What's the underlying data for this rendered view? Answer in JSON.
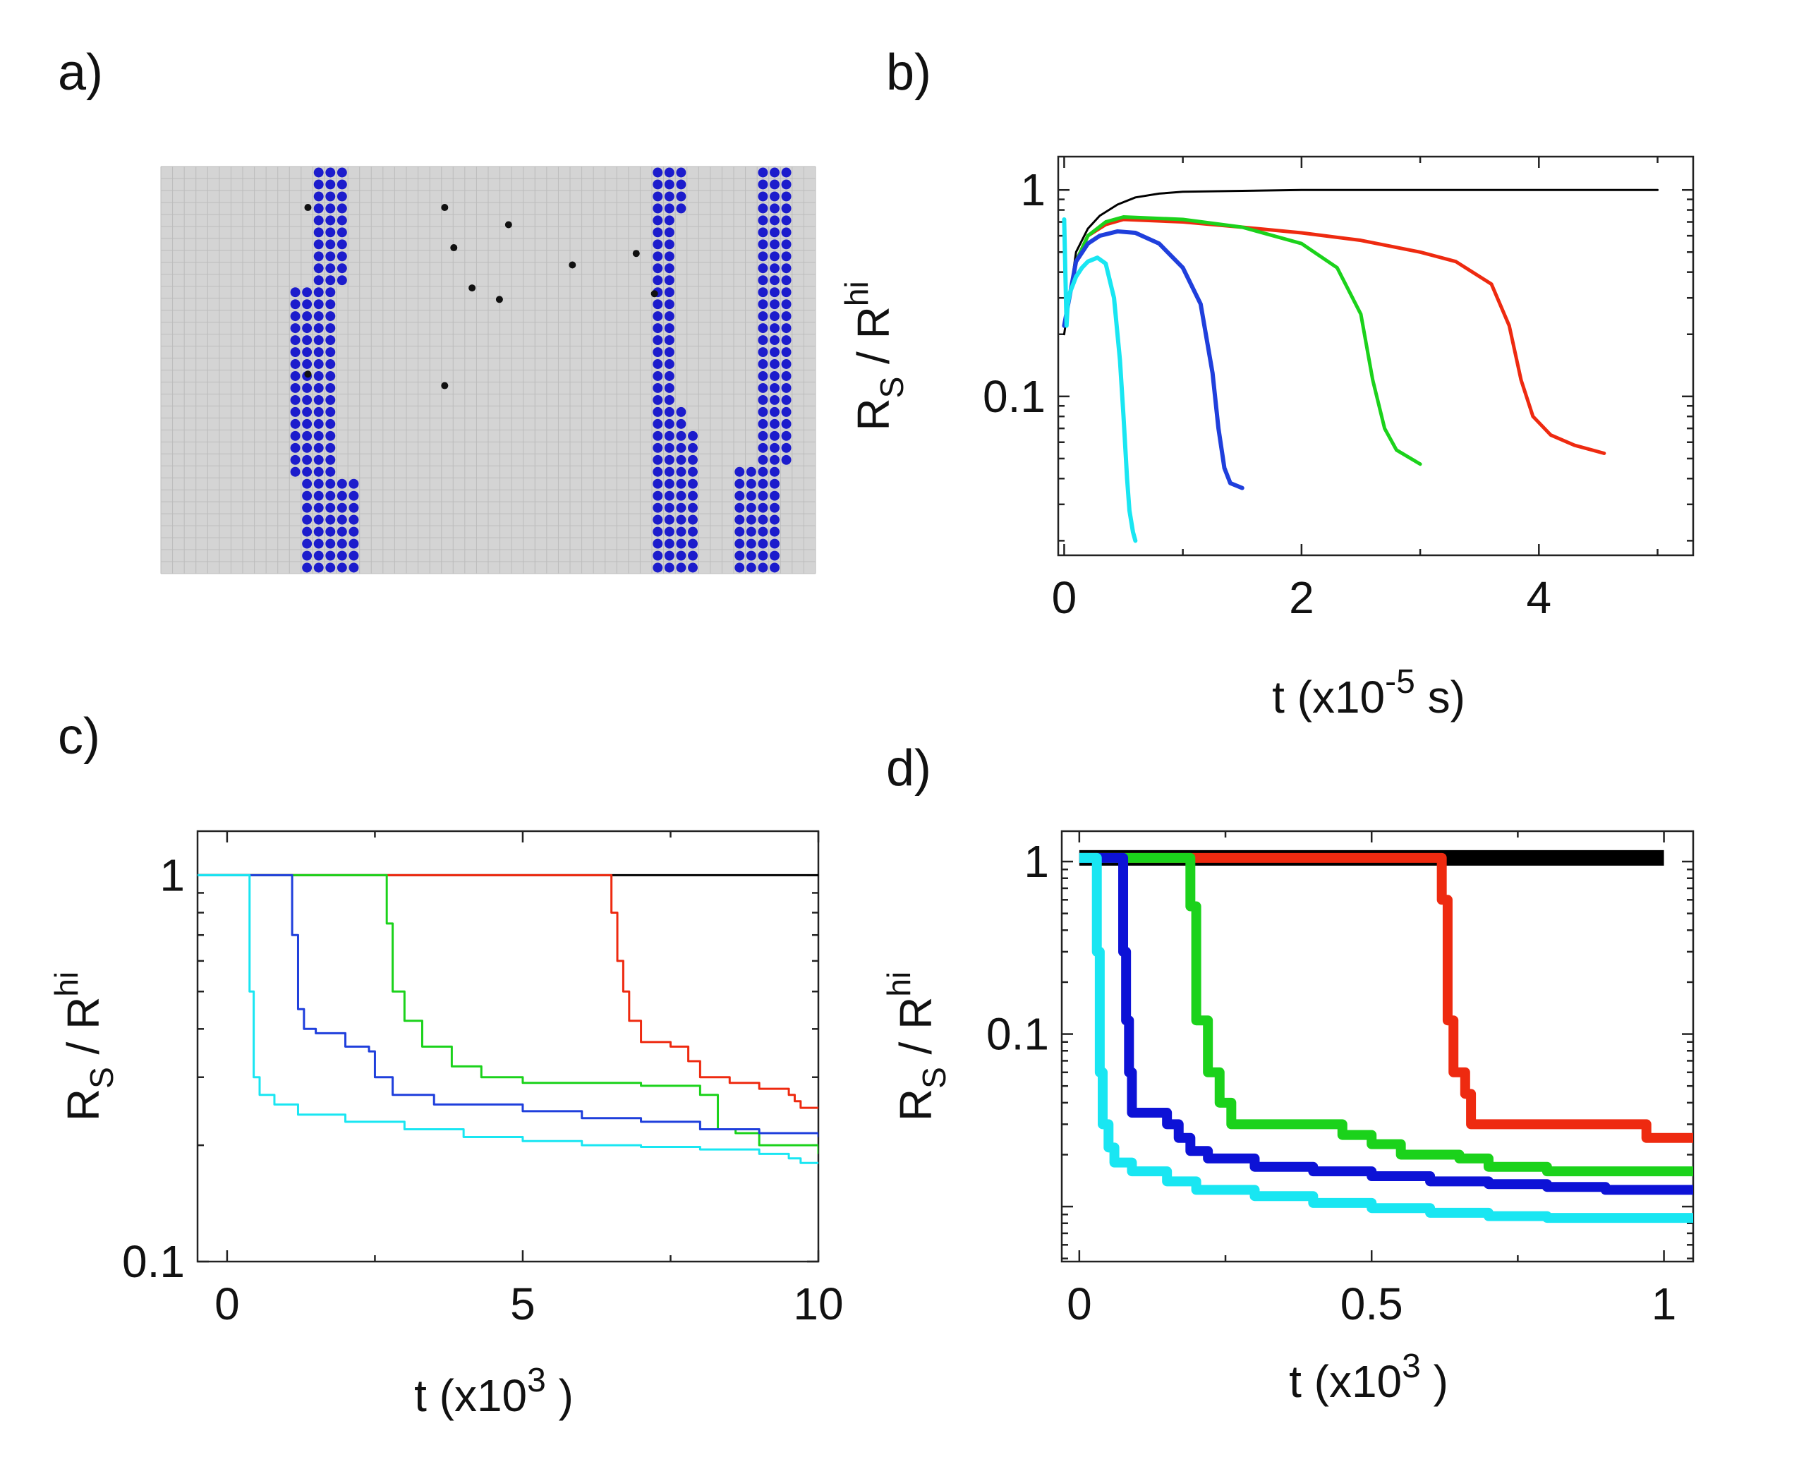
{
  "panels": {
    "a": {
      "label": "a)"
    },
    "b": {
      "label": "b)"
    },
    "c": {
      "label": "c)"
    },
    "d": {
      "label": "d)"
    }
  },
  "lattice": {
    "background": "#d4d4d4",
    "site_color": "#1c1ccc",
    "defect_color": "#111111",
    "grid_cols": 56,
    "grid_rows": 34,
    "defects": [
      [
        11,
        4
      ],
      [
        26,
        4
      ],
      [
        33,
        7
      ],
      [
        27,
        11
      ],
      [
        47,
        12
      ],
      [
        40,
        14
      ],
      [
        29,
        18
      ],
      [
        49,
        19
      ],
      [
        32,
        20
      ],
      [
        11,
        33
      ],
      [
        26,
        35
      ]
    ]
  },
  "colors": {
    "black": "#000000",
    "red": "#ee2a10",
    "green": "#1bd21b",
    "blue": "#1f3fdc",
    "cyan": "#19e6f2",
    "dark_blue": "#0d12d6"
  },
  "chart_data": [
    {
      "id": "b",
      "type": "line",
      "title": "",
      "xlabel": "t (x10",
      "xlabel_sup": "-5",
      "xlabel_tail": " s)",
      "ylabel_main": "R",
      "ylabel_sub": "S",
      "ylabel_mid": " / R",
      "ylabel_sup": "hi",
      "xlim": [
        -0.05,
        5.3
      ],
      "ylim": [
        0.017,
        1.45
      ],
      "yscale": "log",
      "xticks": [
        0,
        2,
        4
      ],
      "xtick_labels": [
        "0",
        "2",
        "4"
      ],
      "yticks": [
        0.1,
        1
      ],
      "ytick_labels": [
        "0.1",
        "1"
      ],
      "series": [
        {
          "color": "black",
          "width": 3,
          "x": [
            0,
            0.1,
            0.2,
            0.3,
            0.45,
            0.6,
            0.8,
            1.0,
            1.5,
            2.0,
            3.0,
            4.0,
            5.0
          ],
          "y": [
            0.2,
            0.5,
            0.65,
            0.75,
            0.85,
            0.92,
            0.96,
            0.98,
            0.99,
            1.0,
            1.0,
            1.0,
            1.0
          ]
        },
        {
          "color": "red",
          "width": 5,
          "x": [
            0,
            0.1,
            0.2,
            0.35,
            0.5,
            1.0,
            1.5,
            2.0,
            2.5,
            3.0,
            3.3,
            3.6,
            3.75,
            3.85,
            3.95,
            4.1,
            4.3,
            4.55
          ],
          "y": [
            0.22,
            0.45,
            0.6,
            0.68,
            0.72,
            0.7,
            0.66,
            0.62,
            0.57,
            0.5,
            0.45,
            0.35,
            0.22,
            0.12,
            0.08,
            0.065,
            0.058,
            0.053
          ]
        },
        {
          "color": "green",
          "width": 5,
          "x": [
            0,
            0.1,
            0.2,
            0.35,
            0.5,
            1.0,
            1.5,
            2.0,
            2.3,
            2.5,
            2.6,
            2.7,
            2.8,
            3.0
          ],
          "y": [
            0.22,
            0.45,
            0.6,
            0.7,
            0.74,
            0.72,
            0.66,
            0.55,
            0.42,
            0.25,
            0.12,
            0.07,
            0.055,
            0.047
          ]
        },
        {
          "color": "blue",
          "width": 6,
          "x": [
            0,
            0.1,
            0.2,
            0.3,
            0.45,
            0.6,
            0.8,
            1.0,
            1.15,
            1.25,
            1.3,
            1.35,
            1.4,
            1.5
          ],
          "y": [
            0.22,
            0.45,
            0.55,
            0.6,
            0.63,
            0.62,
            0.55,
            0.42,
            0.28,
            0.13,
            0.07,
            0.045,
            0.038,
            0.036
          ]
        },
        {
          "color": "cyan",
          "width": 6,
          "x": [
            0,
            0.02,
            0.03,
            0.05,
            0.1,
            0.15,
            0.2,
            0.28,
            0.35,
            0.42,
            0.47,
            0.5,
            0.53,
            0.55,
            0.58,
            0.6
          ],
          "y": [
            0.72,
            0.22,
            0.28,
            0.32,
            0.38,
            0.42,
            0.45,
            0.47,
            0.44,
            0.3,
            0.15,
            0.08,
            0.04,
            0.028,
            0.022,
            0.02
          ]
        }
      ]
    },
    {
      "id": "c",
      "type": "line",
      "title": "",
      "xlabel": "t (x10",
      "xlabel_sup": "3",
      "xlabel_tail": " )",
      "ylabel_main": "R",
      "ylabel_sub": "S",
      "ylabel_mid": " / R",
      "ylabel_sup": "hi",
      "xlim": [
        -0.5,
        10
      ],
      "ylim": [
        0.1,
        1.3
      ],
      "yscale": "log",
      "xticks": [
        0,
        5,
        10
      ],
      "xtick_labels": [
        "0",
        "5",
        "10"
      ],
      "yticks": [
        0.1,
        1
      ],
      "ytick_labels": [
        "0.1",
        "1"
      ],
      "series": [
        {
          "color": "black",
          "width": 3,
          "step": false,
          "x": [
            -0.5,
            10
          ],
          "y": [
            1,
            1
          ]
        },
        {
          "color": "red",
          "width": 3,
          "step": true,
          "x": [
            -0.5,
            6.5,
            6.6,
            6.7,
            6.8,
            7.0,
            7.5,
            7.8,
            8.0,
            8.5,
            9.0,
            9.5,
            9.6,
            9.7,
            10
          ],
          "y": [
            1,
            0.8,
            0.6,
            0.5,
            0.42,
            0.37,
            0.36,
            0.33,
            0.3,
            0.29,
            0.28,
            0.27,
            0.26,
            0.25,
            0.25
          ]
        },
        {
          "color": "green",
          "width": 3,
          "step": true,
          "x": [
            -0.5,
            2.7,
            2.8,
            3.0,
            3.3,
            3.8,
            4.3,
            5.0,
            6.0,
            7.0,
            8.0,
            8.3,
            8.6,
            9.0,
            10
          ],
          "y": [
            1,
            0.75,
            0.5,
            0.42,
            0.36,
            0.32,
            0.3,
            0.29,
            0.29,
            0.285,
            0.27,
            0.22,
            0.215,
            0.2,
            0.19
          ]
        },
        {
          "color": "blue",
          "width": 3,
          "step": true,
          "x": [
            -0.5,
            1.1,
            1.2,
            1.3,
            1.5,
            2.0,
            2.4,
            2.5,
            2.8,
            3.5,
            5.0,
            6.0,
            7.0,
            8.0,
            9.0,
            10
          ],
          "y": [
            1,
            0.7,
            0.45,
            0.4,
            0.39,
            0.36,
            0.35,
            0.3,
            0.27,
            0.255,
            0.245,
            0.235,
            0.23,
            0.22,
            0.215,
            0.21
          ]
        },
        {
          "color": "cyan",
          "width": 3,
          "step": true,
          "x": [
            -0.5,
            0.38,
            0.45,
            0.55,
            0.8,
            1.2,
            2.0,
            3.0,
            4.0,
            5.0,
            6.0,
            7.0,
            8.0,
            9.0,
            9.5,
            9.7,
            10
          ],
          "y": [
            1,
            0.5,
            0.3,
            0.27,
            0.255,
            0.24,
            0.23,
            0.22,
            0.21,
            0.205,
            0.2,
            0.198,
            0.195,
            0.19,
            0.185,
            0.18,
            0.18
          ]
        }
      ]
    },
    {
      "id": "d",
      "type": "line",
      "title": "",
      "xlabel": "t (x10",
      "xlabel_sup": "3",
      "xlabel_tail": " )",
      "ylabel_main": "R",
      "ylabel_sub": "S",
      "ylabel_mid": " / R",
      "ylabel_sup": "hi",
      "xlim": [
        -0.03,
        1.05
      ],
      "ylim": [
        0.0048,
        1.5
      ],
      "yscale": "log",
      "xticks": [
        0,
        0.5,
        1
      ],
      "xtick_labels": [
        "0",
        "0.5",
        "1"
      ],
      "yticks": [
        0.01,
        0.1,
        1
      ],
      "ytick_labels": [
        "",
        "0.1",
        "1"
      ],
      "series": [
        {
          "color": "black",
          "width": 22,
          "step": true,
          "x": [
            0,
            1.0
          ],
          "y": [
            1.05,
            1.05
          ]
        },
        {
          "color": "red",
          "width": 14,
          "step": true,
          "x": [
            0,
            0.6,
            0.62,
            0.63,
            0.64,
            0.66,
            0.67,
            0.95,
            0.97,
            1.05
          ],
          "y": [
            1.05,
            1.05,
            0.6,
            0.12,
            0.06,
            0.045,
            0.03,
            0.03,
            0.025,
            0.025
          ]
        },
        {
          "color": "green",
          "width": 14,
          "step": true,
          "x": [
            0,
            0.18,
            0.19,
            0.2,
            0.22,
            0.24,
            0.26,
            0.4,
            0.45,
            0.5,
            0.55,
            0.65,
            0.7,
            0.8,
            1.05
          ],
          "y": [
            1.05,
            1.05,
            0.55,
            0.12,
            0.06,
            0.04,
            0.03,
            0.03,
            0.026,
            0.023,
            0.02,
            0.019,
            0.017,
            0.016,
            0.016
          ]
        },
        {
          "color": "dark_blue",
          "width": 14,
          "step": true,
          "x": [
            0,
            0.07,
            0.075,
            0.08,
            0.085,
            0.09,
            0.15,
            0.17,
            0.19,
            0.22,
            0.3,
            0.4,
            0.5,
            0.6,
            0.7,
            0.8,
            0.9,
            1.05
          ],
          "y": [
            1.05,
            1.05,
            0.3,
            0.12,
            0.06,
            0.035,
            0.03,
            0.025,
            0.021,
            0.019,
            0.017,
            0.016,
            0.015,
            0.014,
            0.0135,
            0.013,
            0.0125,
            0.012
          ]
        },
        {
          "color": "cyan",
          "width": 14,
          "step": true,
          "x": [
            0,
            0.025,
            0.03,
            0.035,
            0.04,
            0.05,
            0.06,
            0.09,
            0.15,
            0.2,
            0.3,
            0.4,
            0.5,
            0.6,
            0.7,
            0.8,
            1.05
          ],
          "y": [
            1.05,
            1.05,
            0.3,
            0.06,
            0.03,
            0.022,
            0.018,
            0.016,
            0.014,
            0.0125,
            0.0115,
            0.0105,
            0.0098,
            0.0092,
            0.0088,
            0.0086,
            0.0085
          ]
        }
      ]
    }
  ]
}
